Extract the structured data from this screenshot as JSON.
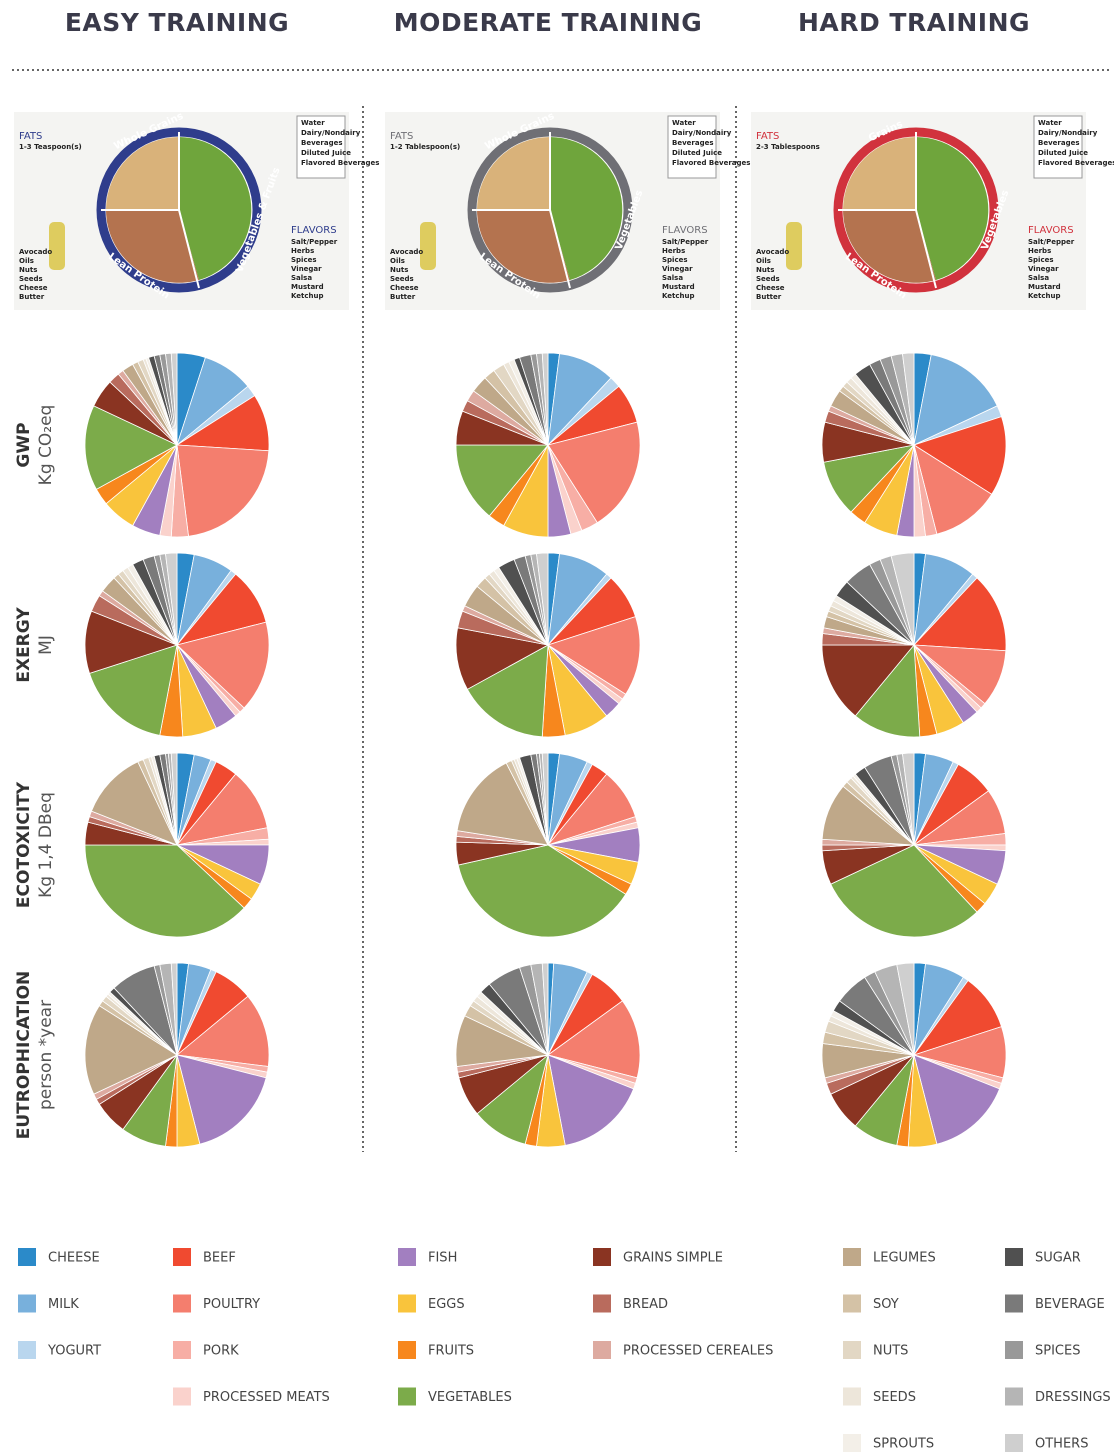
{
  "columns": [
    "EASY TRAINING",
    "MODERATE TRAINING",
    "HARD TRAINING"
  ],
  "rows": [
    {
      "label": "GWP",
      "unit": "Kg CO₂eq"
    },
    {
      "label": "EXERGY",
      "unit": "MJ"
    },
    {
      "label": "ECOTOXICITY",
      "unit": "Kg 1,4 DBeq"
    },
    {
      "label": "EUTROPHICATION",
      "unit": "person *year"
    }
  ],
  "plates": [
    {
      "fats": "FATS",
      "fats_amount": "1-3 Teaspoon(s)",
      "grains": "Whole Grains",
      "protein": "Lean Protein",
      "produce": "Vegetables & Fruits",
      "flavors": "FLAVORS",
      "ring": "#2f3d8c",
      "accent": "#2f3d8c"
    },
    {
      "fats": "FATS",
      "fats_amount": "1-2 Tablespoon(s)",
      "grains": "Whole Grains",
      "protein": "Lean Protein",
      "produce": "Vegetables",
      "flavors": "FLAVORS",
      "ring": "#6f6f75",
      "accent": "#6f6f75"
    },
    {
      "fats": "FATS",
      "fats_amount": "2-3 Tablespoons",
      "grains": "Grains",
      "protein": "Lean Protein",
      "produce": "Vegetables",
      "flavors": "FLAVORS",
      "ring": "#d1323d",
      "accent": "#d1323d"
    }
  ],
  "plate_lists": {
    "fats": [
      "Avocado",
      "Oils",
      "Nuts",
      "Seeds",
      "Cheese",
      "Butter"
    ],
    "flavors": [
      "Salt/Pepper",
      "Herbs",
      "Spices",
      "Vinegar",
      "Salsa",
      "Mustard",
      "Ketchup"
    ],
    "drinks": [
      "Water",
      "Dairy/Nondairy",
      "Beverages",
      "Diluted Juice",
      "Flavored Beverages"
    ]
  },
  "legend": {
    "categories": [
      "CHEESE",
      "MILK",
      "YOGURT",
      "BEEF",
      "POULTRY",
      "PORK",
      "PROCESSED MEATS",
      "FISH",
      "EGGS",
      "FRUITS",
      "VEGETABLES",
      "GRAINS SIMPLE",
      "BREAD",
      "PROCESSED CEREALES",
      "LEGUMES",
      "SOY",
      "NUTS",
      "SEEDS",
      "SPROUTS",
      "SUGAR",
      "BEVERAGE",
      "SPICES",
      "DRESSINGS",
      "OTHERS"
    ],
    "colors": [
      "#2b8ac9",
      "#78b0dc",
      "#b9d6ee",
      "#f04a30",
      "#f47e6e",
      "#f7aea5",
      "#fad2cc",
      "#a27fc0",
      "#f9c43c",
      "#f7871d",
      "#7cab4a",
      "#8a3422",
      "#b96b5d",
      "#ddaaa0",
      "#bfa889",
      "#d4c2a6",
      "#e2d7c4",
      "#ede6da",
      "#f3efe8",
      "#505050",
      "#7a7a7a",
      "#999999",
      "#b5b5b5",
      "#cfcfcf"
    ]
  },
  "chart_data": [
    {
      "type": "pie",
      "values": [
        5,
        9,
        2,
        10,
        22,
        3,
        2,
        5,
        6,
        3,
        15,
        5,
        2,
        1,
        2,
        1,
        1,
        0.5,
        0.5,
        1,
        1,
        1,
        1,
        1
      ]
    },
    {
      "type": "pie",
      "values": [
        2,
        10,
        2,
        7,
        20,
        3,
        2,
        4,
        8,
        3,
        14,
        6,
        2,
        2,
        3,
        2,
        2,
        1,
        1,
        1,
        2,
        1,
        1,
        1
      ]
    },
    {
      "type": "pie",
      "values": [
        3,
        15,
        2,
        14,
        12,
        2,
        2,
        3,
        6,
        3,
        10,
        7,
        2,
        1,
        3,
        1,
        1,
        1,
        1,
        3,
        2,
        2,
        2,
        2
      ]
    },
    {
      "type": "pie",
      "values": [
        3,
        7,
        1,
        10,
        16,
        1,
        1,
        4,
        6,
        4,
        17,
        11,
        3,
        1,
        3,
        1,
        1,
        1,
        1,
        2,
        2,
        1,
        1,
        2
      ]
    },
    {
      "type": "pie",
      "values": [
        2,
        9,
        1,
        8,
        14,
        1,
        1,
        3,
        8,
        4,
        16,
        11,
        3,
        1,
        4,
        2,
        1,
        1,
        1,
        3,
        2,
        1,
        1,
        2
      ]
    },
    {
      "type": "pie",
      "values": [
        2,
        9,
        1,
        14,
        10,
        1,
        1,
        3,
        5,
        3,
        12,
        14,
        2,
        1,
        2,
        1,
        1,
        1,
        1,
        3,
        5,
        2,
        2,
        4
      ]
    },
    {
      "type": "pie",
      "values": [
        3,
        3,
        1,
        4,
        11,
        2,
        1,
        7,
        3,
        2,
        38,
        4,
        1,
        1,
        12,
        1,
        1,
        0.5,
        0.5,
        1,
        1,
        0.5,
        0.5,
        1
      ]
    },
    {
      "type": "pie",
      "values": [
        2,
        5,
        1,
        3,
        9,
        1,
        1,
        6,
        4,
        2,
        37.5,
        4,
        1,
        1,
        15,
        1,
        0.5,
        0.5,
        0.5,
        2,
        1,
        0.5,
        0.5,
        1
      ]
    },
    {
      "type": "pie",
      "values": [
        2,
        5,
        1,
        7,
        8,
        2,
        1,
        6,
        4,
        2,
        30,
        6,
        1,
        1,
        10,
        1,
        1,
        0.5,
        0.5,
        2,
        5,
        1,
        1,
        2
      ]
    },
    {
      "type": "pie",
      "values": [
        2,
        4,
        1,
        7,
        13,
        1,
        1,
        17,
        4,
        2,
        8,
        6,
        1,
        1,
        16,
        1,
        1,
        0.5,
        0.5,
        1,
        8,
        1,
        2,
        1
      ]
    },
    {
      "type": "pie",
      "values": [
        1,
        6,
        1,
        7,
        14,
        1,
        1,
        16,
        5,
        2,
        10,
        7,
        1,
        1,
        9,
        2,
        1,
        1,
        1,
        2,
        6,
        2,
        2,
        1
      ]
    },
    {
      "type": "pie",
      "values": [
        2,
        7,
        1,
        10,
        9,
        1,
        1,
        15,
        5,
        2,
        8,
        7,
        2,
        1,
        6,
        2,
        2,
        1,
        1,
        2,
        6,
        2,
        4,
        3
      ]
    }
  ]
}
